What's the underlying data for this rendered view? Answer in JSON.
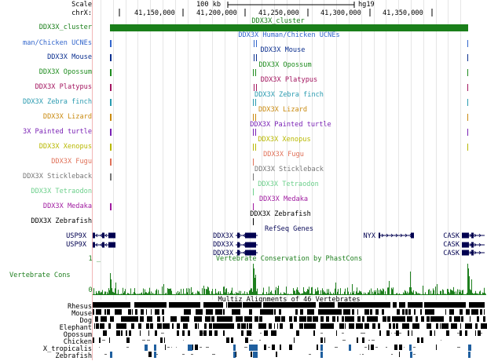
{
  "ruler": {
    "scale_label": "Scale",
    "scale_value": "100 kb",
    "assembly": "hg19",
    "chrom_label": "chrX:",
    "ticks": [
      "41,150,000",
      "41,200,000",
      "41,250,000",
      "41,300,000",
      "41,350,000"
    ]
  },
  "tracks": [
    {
      "label": "DDX3X_cluster",
      "center": "DDX3X_cluster",
      "color": "#1a7f1a"
    },
    {
      "label": "man/Chicken UCNEs",
      "center": "DDX3X Human/Chicken UCNEs",
      "color": "#3366cc"
    },
    {
      "label": "DDX3X Mouse",
      "center": "DDX3X Mouse",
      "color": "#0b2f8f"
    },
    {
      "label": "DDX3X Opossum",
      "center": "DDX3X Opossum",
      "color": "#1e8c1e"
    },
    {
      "label": "DDX3X Platypus",
      "center": "DDX3X Platypus",
      "color": "#a3155f"
    },
    {
      "label": "DDX3X Zebra finch",
      "center": "DDX3X Zebra finch",
      "color": "#2a9bb0"
    },
    {
      "label": "DDX3X Lizard",
      "center": "DDX3X Lizard",
      "color": "#c98a10"
    },
    {
      "label": "3X Painted turtle",
      "center": "DDX3X Painted turtle",
      "color": "#7a22b5"
    },
    {
      "label": "DDX3X Xenopus",
      "center": "DDX3X Xenopus",
      "color": "#b8b800"
    },
    {
      "label": "DDX3X Fugu",
      "center": "DDX3X Fugu",
      "color": "#e0725a"
    },
    {
      "label": "DDX3X Stickleback",
      "center": "DDX3X Stickleback",
      "color": "#777777"
    },
    {
      "label": "DDX3X Tetraodon",
      "center": "DDX3X Tetraodon",
      "color": "#6dd08c"
    },
    {
      "label": "DDX3X Medaka",
      "center": "DDX3X Medaka",
      "color": "#a01ca0"
    },
    {
      "label": "DDX3X Zebrafish",
      "center": "DDX3X Zebrafish",
      "color": "#000000"
    }
  ],
  "refseq": {
    "title": "RefSeq Genes",
    "genes": [
      {
        "name": "USP9X"
      },
      {
        "name": "USP9X"
      },
      {
        "name": "DDX3X"
      },
      {
        "name": "DDX3X"
      },
      {
        "name": "DDX3X"
      },
      {
        "name": "NYX"
      },
      {
        "name": "CASK"
      },
      {
        "name": "CASK"
      },
      {
        "name": "CASK"
      }
    ]
  },
  "conservation": {
    "title": "Vertebrate Conservation by PhastCons",
    "label": "Vertebrate Cons",
    "ymax": "1 _",
    "ymin": "0 _",
    "color": "#1e7f1e"
  },
  "multiz": {
    "title": "Multiz Alignments of 46 Vertebrates",
    "species": [
      "Rhesus",
      "Mouse",
      "Dog",
      "Elephant",
      "Opossum",
      "Chicken",
      "X_tropicalis",
      "Zebrafish"
    ]
  }
}
